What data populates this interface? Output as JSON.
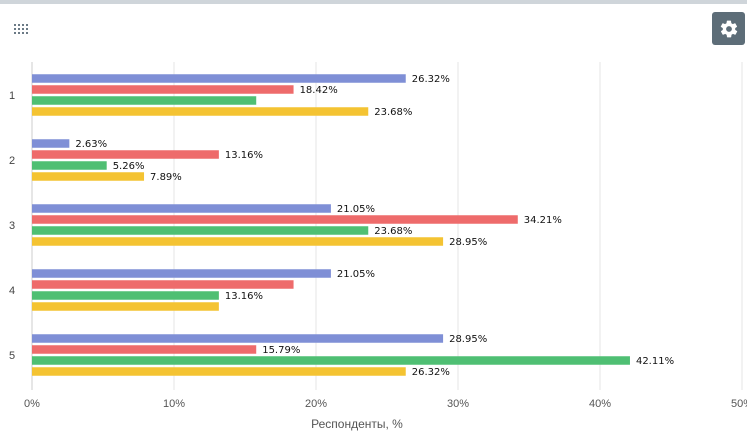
{
  "toolbar": {
    "menu_icon": "grid-dots-icon",
    "settings_icon": "gear-icon",
    "settings_button_color": "#5d6d78"
  },
  "chart_data": {
    "type": "bar",
    "orientation": "horizontal",
    "title": "",
    "xlabel": "Респонденты, %",
    "ylabel": "",
    "xlim": [
      0,
      50
    ],
    "x_ticks": [
      "0%",
      "10%",
      "20%",
      "30%",
      "40%",
      "50%"
    ],
    "x_tick_values": [
      0,
      10,
      20,
      30,
      40,
      50
    ],
    "grid": true,
    "legend": "none",
    "categories": [
      "1",
      "2",
      "3",
      "4",
      "5"
    ],
    "series": [
      {
        "color": "#7f8fd6",
        "values": [
          26.32,
          2.63,
          21.05,
          21.05,
          28.95
        ],
        "labels": [
          "26.32%",
          "2.63%",
          "21.05%",
          "21.05%",
          "28.95%"
        ]
      },
      {
        "color": "#ee6b6b",
        "values": [
          18.42,
          13.16,
          34.21,
          18.42,
          15.79
        ],
        "labels": [
          "18.42%",
          "13.16%",
          "34.21%",
          "",
          "15.79%"
        ]
      },
      {
        "color": "#4fbf73",
        "values": [
          15.79,
          5.26,
          23.68,
          13.16,
          42.11
        ],
        "labels": [
          "",
          "5.26%",
          "23.68%",
          "13.16%",
          "42.11%"
        ]
      },
      {
        "color": "#f4c332",
        "values": [
          23.68,
          7.89,
          28.95,
          13.16,
          26.32
        ],
        "labels": [
          "23.68%",
          "7.89%",
          "28.95%",
          "",
          "26.32%"
        ]
      }
    ]
  }
}
